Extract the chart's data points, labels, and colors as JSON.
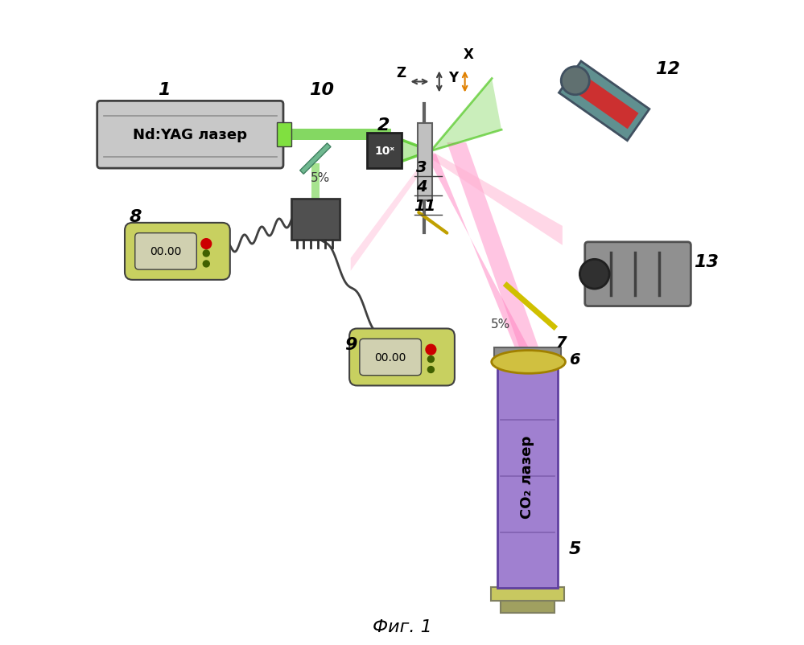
{
  "title": "Фиг. 1",
  "background": "#ffffff",
  "fig_width": 9.99,
  "fig_height": 8.03,
  "nd_yag_laser_text": "Nd:YAG лазер",
  "co2_laser_text": "CO₂ лазер",
  "display_text": "00.00",
  "axis_z": "Z",
  "axis_y": "Y",
  "axis_x": "X",
  "ten_x": "10ˣ",
  "colors": {
    "laser_body": "#c8c8c8",
    "laser_border": "#404040",
    "green_beam": "#50c820",
    "pink_beam": "#ff80c0",
    "pink_beam2": "#ffb0d0",
    "display_bg": "#c8d060",
    "display_screen": "#d0d0b0",
    "co2_body": "#a080d0",
    "co2_border": "#6040a0",
    "co2_base": "#c8c860",
    "lens_color": "#d0c040",
    "mirror_yellow": "#d0c000",
    "red_dot": "#cc0000",
    "green_dot": "#406000"
  }
}
